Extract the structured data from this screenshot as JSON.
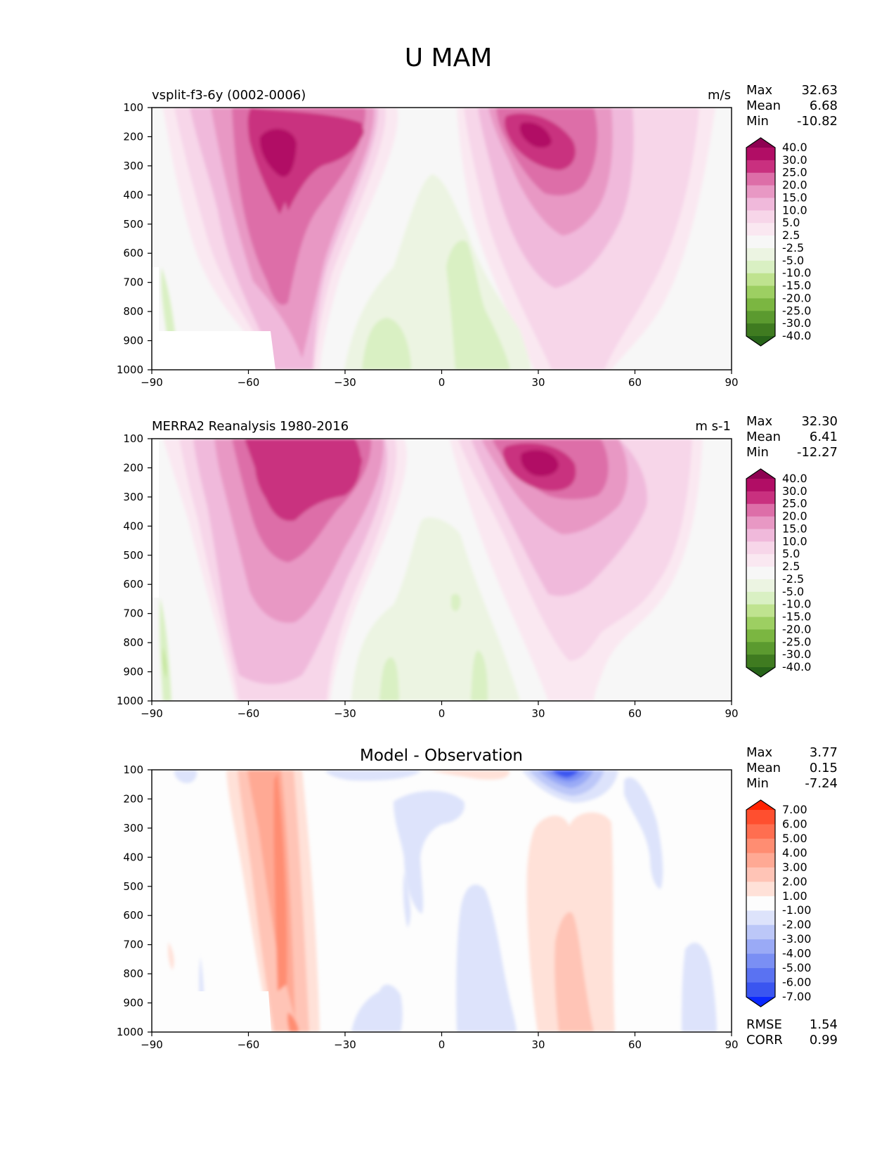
{
  "figure_title": "U MAM",
  "chart_data": [
    {
      "type": "heatmap",
      "title": "",
      "subtitle_left": "vsplit-f3-6y (0002-0006)",
      "units": "m/s",
      "x_ticks": [
        -90,
        -60,
        -30,
        0,
        30,
        60,
        90
      ],
      "xlim": [
        -90,
        90
      ],
      "y_ticks": [
        100,
        200,
        300,
        400,
        500,
        600,
        700,
        800,
        900,
        1000
      ],
      "ylim": [
        1000,
        100
      ],
      "y_inverted": true,
      "stats": [
        {
          "label": "Max",
          "value": "32.63"
        },
        {
          "label": "Mean",
          "value": "6.68"
        },
        {
          "label": "Min",
          "value": "-10.82"
        }
      ],
      "colorbar": {
        "labels": [
          "40.0",
          "30.0",
          "25.0",
          "20.0",
          "15.0",
          "10.0",
          "5.0",
          "2.5",
          "-2.5",
          "-5.0",
          "-10.0",
          "-15.0",
          "-20.0",
          "-25.0",
          "-30.0",
          "-40.0"
        ],
        "colors": [
          "#8e0152",
          "#b10d65",
          "#c9307f",
          "#dd6ea8",
          "#e898c4",
          "#f0b9db",
          "#f7d6e9",
          "#fae8f1",
          "#f7f7f7",
          "#ecf4e2",
          "#d9f0c3",
          "#bfe38f",
          "#9dcf62",
          "#7bb641",
          "#5b9a2f",
          "#3f7b20",
          "#276419"
        ]
      }
    },
    {
      "type": "heatmap",
      "title": "",
      "subtitle_left": "MERRA2 Reanalysis 1980-2016",
      "units": "m s-1",
      "x_ticks": [
        -90,
        -60,
        -30,
        0,
        30,
        60,
        90
      ],
      "xlim": [
        -90,
        90
      ],
      "y_ticks": [
        100,
        200,
        300,
        400,
        500,
        600,
        700,
        800,
        900,
        1000
      ],
      "ylim": [
        1000,
        100
      ],
      "y_inverted": true,
      "stats": [
        {
          "label": "Max",
          "value": "32.30"
        },
        {
          "label": "Mean",
          "value": "6.41"
        },
        {
          "label": "Min",
          "value": "-12.27"
        }
      ],
      "colorbar": {
        "labels": [
          "40.0",
          "30.0",
          "25.0",
          "20.0",
          "15.0",
          "10.0",
          "5.0",
          "2.5",
          "-2.5",
          "-5.0",
          "-10.0",
          "-15.0",
          "-20.0",
          "-25.0",
          "-30.0",
          "-40.0"
        ],
        "colors": [
          "#8e0152",
          "#b10d65",
          "#c9307f",
          "#dd6ea8",
          "#e898c4",
          "#f0b9db",
          "#f7d6e9",
          "#fae8f1",
          "#f7f7f7",
          "#ecf4e2",
          "#d9f0c3",
          "#bfe38f",
          "#9dcf62",
          "#7bb641",
          "#5b9a2f",
          "#3f7b20",
          "#276419"
        ]
      }
    },
    {
      "type": "heatmap",
      "title": "Model - Observation",
      "subtitle_left": "",
      "units": "",
      "x_ticks": [
        -90,
        -60,
        -30,
        0,
        30,
        60,
        90
      ],
      "xlim": [
        -90,
        90
      ],
      "y_ticks": [
        100,
        200,
        300,
        400,
        500,
        600,
        700,
        800,
        900,
        1000
      ],
      "ylim": [
        1000,
        100
      ],
      "y_inverted": true,
      "stats": [
        {
          "label": "Max",
          "value": "3.77"
        },
        {
          "label": "Mean",
          "value": "0.15"
        },
        {
          "label": "Min",
          "value": "-7.24"
        }
      ],
      "extra_stats": [
        {
          "label": "RMSE",
          "value": "1.54"
        },
        {
          "label": "CORR",
          "value": "0.99"
        }
      ],
      "colorbar": {
        "labels": [
          "7.00",
          "6.00",
          "5.00",
          "4.00",
          "3.00",
          "2.00",
          "1.00",
          "-1.00",
          "-2.00",
          "-3.00",
          "-4.00",
          "-5.00",
          "-6.00",
          "-7.00"
        ],
        "colors": [
          "#ff2200",
          "#ff4f2f",
          "#ff6e50",
          "#ff8d72",
          "#ffa994",
          "#ffc4b6",
          "#ffe1d8",
          "#fdfdfd",
          "#dde3fb",
          "#bcc7f8",
          "#9aaaf6",
          "#7a8ff4",
          "#5a72f2",
          "#3a55f0",
          "#0a28ff"
        ]
      }
    }
  ]
}
